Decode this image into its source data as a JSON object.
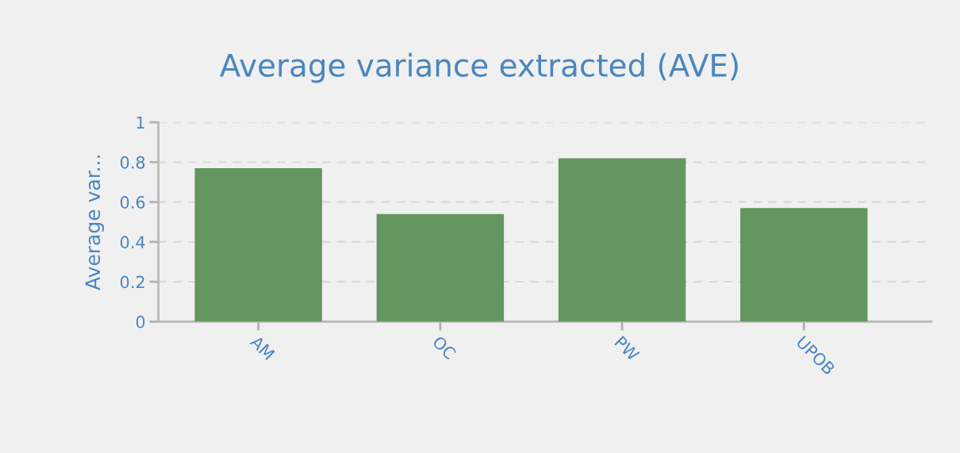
{
  "chart_data": {
    "type": "bar",
    "title": "Average variance extracted (AVE)",
    "ylabel": "Average var...",
    "categories": [
      "AM",
      "OC",
      "PW",
      "UPOB"
    ],
    "values": [
      0.77,
      0.54,
      0.82,
      0.57
    ],
    "color": "#64965f",
    "ylim": [
      0,
      1
    ],
    "yticks": [
      0,
      0.2,
      0.4,
      0.6,
      0.8,
      1
    ],
    "grid": "y"
  }
}
